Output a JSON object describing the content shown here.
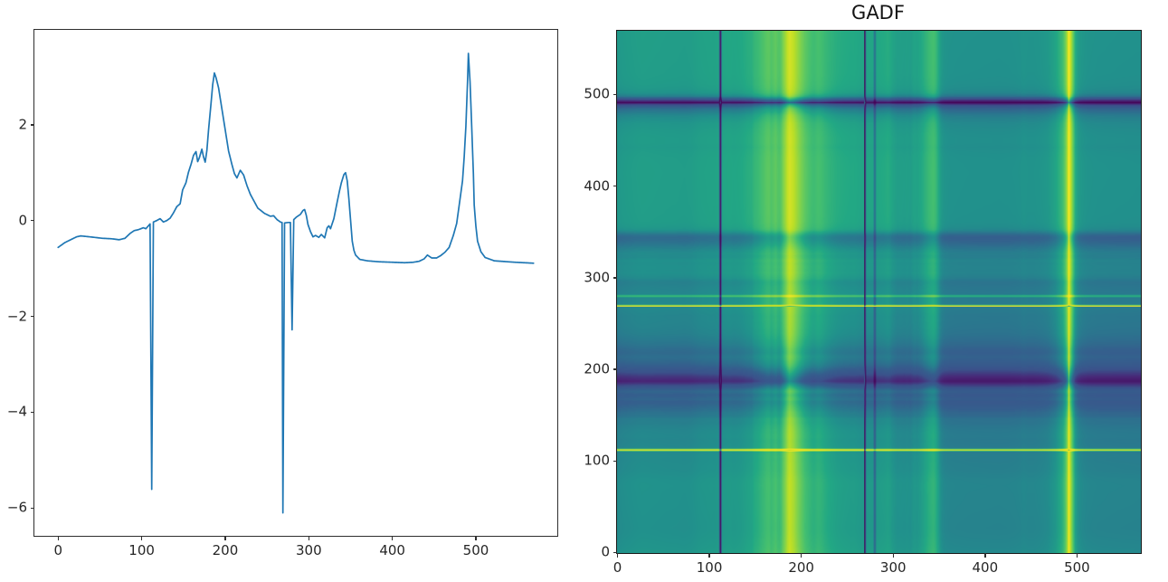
{
  "figure": {
    "background": "#ffffff"
  },
  "chart_data": [
    {
      "type": "line",
      "title": "",
      "xlabel": "",
      "ylabel": "",
      "line_color": "#1f77b4",
      "xlim": [
        -28.45,
        597.45
      ],
      "ylim": [
        -6.58,
        3.98
      ],
      "x_ticks": [
        0,
        100,
        200,
        300,
        400,
        500
      ],
      "x_tick_labels": [
        "0",
        "100",
        "200",
        "300",
        "400",
        "500"
      ],
      "y_ticks": [
        2,
        0,
        -2,
        -4,
        -6
      ],
      "y_tick_labels": [
        "2",
        "0",
        "−2",
        "−4",
        "−6"
      ],
      "grid": false,
      "legend": null,
      "n_points": 570,
      "series_note": "piecewise-linear keypoints [index, value] of the plotted time series; downward single-sample spikes at x=112, 269, 280",
      "series_keypoints": [
        [
          0,
          -0.56
        ],
        [
          8,
          -0.46
        ],
        [
          22,
          -0.34
        ],
        [
          27,
          -0.32
        ],
        [
          38,
          -0.34
        ],
        [
          53,
          -0.37
        ],
        [
          64,
          -0.38
        ],
        [
          73,
          -0.4
        ],
        [
          80,
          -0.37
        ],
        [
          86,
          -0.27
        ],
        [
          91,
          -0.21
        ],
        [
          96,
          -0.19
        ],
        [
          102,
          -0.15
        ],
        [
          105,
          -0.17
        ],
        [
          109,
          -0.09
        ],
        [
          110,
          -0.07
        ],
        [
          112,
          -5.61
        ],
        [
          114,
          -0.03
        ],
        [
          118,
          0.0
        ],
        [
          122,
          0.04
        ],
        [
          126,
          -0.03
        ],
        [
          130,
          0.0
        ],
        [
          134,
          0.05
        ],
        [
          138,
          0.16
        ],
        [
          142,
          0.29
        ],
        [
          146,
          0.35
        ],
        [
          149,
          0.64
        ],
        [
          153,
          0.79
        ],
        [
          156,
          1.01
        ],
        [
          159,
          1.17
        ],
        [
          162,
          1.36
        ],
        [
          165,
          1.44
        ],
        [
          167,
          1.23
        ],
        [
          169,
          1.31
        ],
        [
          172,
          1.49
        ],
        [
          174,
          1.33
        ],
        [
          176,
          1.22
        ],
        [
          178,
          1.46
        ],
        [
          180,
          1.89
        ],
        [
          183,
          2.45
        ],
        [
          185,
          2.84
        ],
        [
          187,
          3.08
        ],
        [
          189,
          2.98
        ],
        [
          192,
          2.77
        ],
        [
          196,
          2.33
        ],
        [
          200,
          1.89
        ],
        [
          204,
          1.45
        ],
        [
          208,
          1.17
        ],
        [
          211,
          0.98
        ],
        [
          214,
          0.89
        ],
        [
          218,
          1.05
        ],
        [
          222,
          0.95
        ],
        [
          226,
          0.73
        ],
        [
          230,
          0.55
        ],
        [
          234,
          0.42
        ],
        [
          239,
          0.26
        ],
        [
          247,
          0.15
        ],
        [
          254,
          0.09
        ],
        [
          258,
          0.1
        ],
        [
          262,
          0.02
        ],
        [
          266,
          -0.03
        ],
        [
          268,
          -0.04
        ],
        [
          269,
          -6.1
        ],
        [
          271,
          -0.05
        ],
        [
          275,
          -0.04
        ],
        [
          278,
          -0.04
        ],
        [
          280,
          -2.28
        ],
        [
          282,
          0.02
        ],
        [
          285,
          0.07
        ],
        [
          290,
          0.13
        ],
        [
          293,
          0.21
        ],
        [
          295,
          0.23
        ],
        [
          297,
          0.11
        ],
        [
          299,
          -0.08
        ],
        [
          302,
          -0.23
        ],
        [
          305,
          -0.34
        ],
        [
          308,
          -0.31
        ],
        [
          312,
          -0.35
        ],
        [
          315,
          -0.29
        ],
        [
          319,
          -0.36
        ],
        [
          322,
          -0.15
        ],
        [
          324,
          -0.11
        ],
        [
          326,
          -0.17
        ],
        [
          330,
          0.04
        ],
        [
          334,
          0.39
        ],
        [
          337,
          0.64
        ],
        [
          339,
          0.79
        ],
        [
          342,
          0.96
        ],
        [
          344,
          1.0
        ],
        [
          346,
          0.83
        ],
        [
          348,
          0.45
        ],
        [
          350,
          0.01
        ],
        [
          352,
          -0.43
        ],
        [
          354,
          -0.62
        ],
        [
          356,
          -0.72
        ],
        [
          361,
          -0.81
        ],
        [
          370,
          -0.84
        ],
        [
          384,
          -0.86
        ],
        [
          400,
          -0.87
        ],
        [
          415,
          -0.88
        ],
        [
          425,
          -0.87
        ],
        [
          432,
          -0.85
        ],
        [
          438,
          -0.8
        ],
        [
          442,
          -0.72
        ],
        [
          447,
          -0.78
        ],
        [
          453,
          -0.78
        ],
        [
          458,
          -0.73
        ],
        [
          463,
          -0.66
        ],
        [
          468,
          -0.56
        ],
        [
          473,
          -0.31
        ],
        [
          477,
          -0.06
        ],
        [
          480,
          0.32
        ],
        [
          484,
          0.83
        ],
        [
          486,
          1.33
        ],
        [
          488,
          1.96
        ],
        [
          490,
          2.9
        ],
        [
          491,
          3.49
        ],
        [
          493,
          2.9
        ],
        [
          495,
          1.96
        ],
        [
          497,
          0.98
        ],
        [
          498,
          0.32
        ],
        [
          500,
          -0.12
        ],
        [
          502,
          -0.43
        ],
        [
          506,
          -0.65
        ],
        [
          511,
          -0.77
        ],
        [
          522,
          -0.84
        ],
        [
          547,
          -0.87
        ],
        [
          569,
          -0.89
        ]
      ]
    },
    {
      "type": "heatmap",
      "title": "GADF",
      "colormap": "viridis",
      "origin": "lower",
      "extent": [
        -0.5,
        569.5,
        -0.5,
        569.5
      ],
      "vmin": -1,
      "vmax": 1,
      "x_ticks": [
        0,
        100,
        200,
        300,
        400,
        500
      ],
      "x_tick_labels": [
        "0",
        "100",
        "200",
        "300",
        "400",
        "500"
      ],
      "y_ticks": [
        0,
        100,
        200,
        300,
        400,
        500
      ],
      "y_tick_labels": [
        "0",
        "100",
        "200",
        "300",
        "400",
        "500"
      ],
      "derivation": "GADF[i][j] = sin(phi_i - phi_j), phi = arccos of the min-max scaled series from the left plot",
      "series_min": -6.1,
      "series_max": 3.49
    }
  ]
}
